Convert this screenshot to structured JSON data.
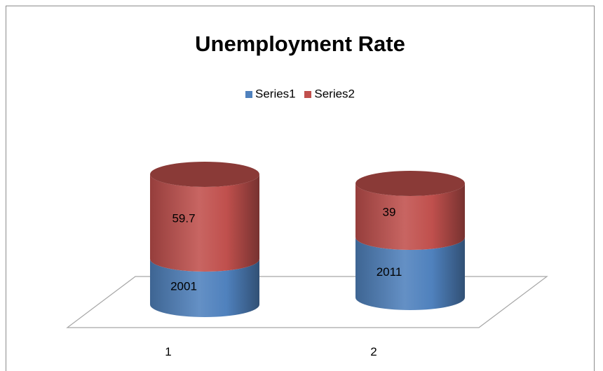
{
  "chart_data": {
    "type": "bar",
    "subtype": "stacked-cylinder-3d",
    "title": "Unemployment Rate",
    "categories": [
      "1",
      "2"
    ],
    "series": [
      {
        "name": "Series1",
        "values": [
          2001,
          2011
        ],
        "color": "#4f81bd",
        "labels": [
          "2001",
          "2011"
        ]
      },
      {
        "name": "Series2",
        "values": [
          59.7,
          39
        ],
        "color": "#c0504d",
        "labels": [
          "59.7",
          "39"
        ]
      }
    ],
    "legend_position": "top",
    "grid": false
  }
}
